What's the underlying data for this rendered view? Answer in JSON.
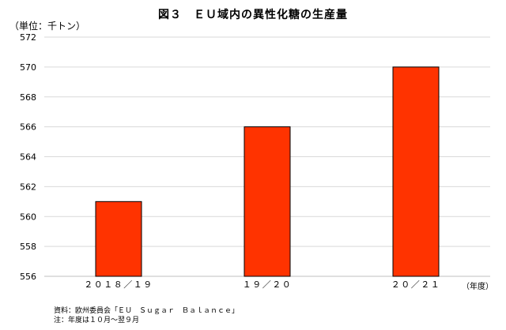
{
  "title": "図３　ＥＵ域内の異性化糖の生産量",
  "unit_label": "（単位：千トン）",
  "x_unit_label": "（年度）",
  "notes": [
    "資料：欧州委員会「ＥＵ　Ｓｕｇａｒ　Ｂａｌａｎｃｅ」",
    "注：年度は１０月～翌９月"
  ],
  "colors": {
    "bar_fill": "#ff3300",
    "bar_stroke": "#000000",
    "gridline": "#d9d9d9"
  },
  "chart_data": {
    "type": "bar",
    "title": "図３　ＥＵ域内の異性化糖の生産量",
    "ylabel": "（単位：千トン）",
    "xlabel": "（年度）",
    "categories": [
      "２０１８／１９",
      "１９／２０",
      "２０／２１"
    ],
    "values": [
      561,
      566,
      570
    ],
    "ylim": [
      556,
      572
    ],
    "yticks": [
      556,
      558,
      560,
      562,
      564,
      566,
      568,
      570,
      572
    ],
    "grid": true,
    "legend": "none"
  }
}
